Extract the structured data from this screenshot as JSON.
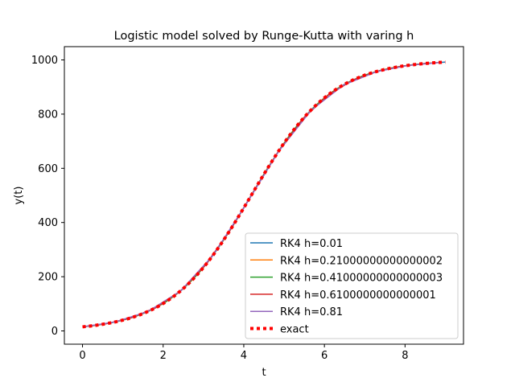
{
  "chart_data": {
    "type": "line",
    "title": "Logistic model solved by Runge-Kutta with varing h",
    "xlabel": "t",
    "ylabel": "y(t)",
    "xlim": [
      -0.45,
      9.45
    ],
    "ylim": [
      -49,
      1049
    ],
    "x_ticks": [
      0,
      2,
      4,
      6,
      8
    ],
    "y_ticks": [
      0,
      200,
      400,
      600,
      800,
      1000
    ],
    "grid": false,
    "legend_position": "lower right",
    "logistic_parameters": {
      "K": 1000,
      "y0": 15,
      "r": 1.0
    },
    "series": [
      {
        "name": "RK4 h=0.01",
        "color": "#1f77b4",
        "style": "solid",
        "t_step": 0.01
      },
      {
        "name": "RK4 h=0.21000000000000002",
        "color": "#ff7f0e",
        "style": "solid",
        "t_step": 0.21
      },
      {
        "name": "RK4 h=0.41000000000000003",
        "color": "#2ca02c",
        "style": "solid",
        "t_step": 0.41
      },
      {
        "name": "RK4 h=0.6100000000000001",
        "color": "#d62728",
        "style": "solid",
        "t_step": 0.61
      },
      {
        "name": "RK4 h=0.81",
        "color": "#9467bd",
        "style": "solid",
        "t_step": 0.81
      },
      {
        "name": "exact",
        "color": "#ff0000",
        "style": "dotted",
        "t_step": 0.25
      }
    ],
    "t_range": [
      0,
      9
    ]
  }
}
